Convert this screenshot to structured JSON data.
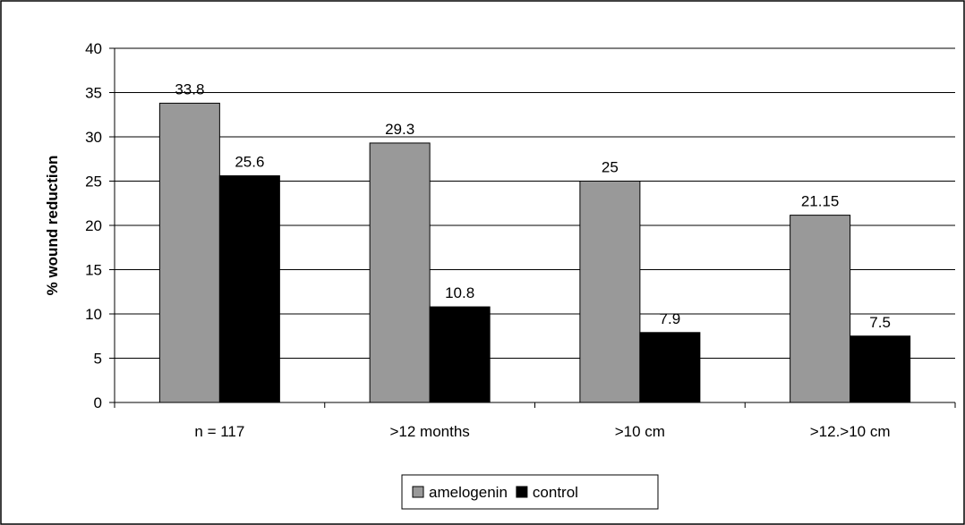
{
  "chart_data": {
    "type": "bar",
    "title": "",
    "xlabel": "",
    "ylabel": "% wound reduction",
    "ylim": [
      0,
      40
    ],
    "yticks": [
      0,
      5,
      10,
      15,
      20,
      25,
      30,
      35,
      40
    ],
    "grid": true,
    "legend_position": "bottom",
    "categories": [
      "n = 117",
      ">12 months",
      ">10 cm",
      ">12.>10 cm"
    ],
    "series": [
      {
        "name": "amelogenin",
        "values": [
          33.8,
          29.3,
          25,
          21.15
        ],
        "labels": [
          "33.8",
          "29.3",
          "25",
          "21.15"
        ],
        "color": "#999999"
      },
      {
        "name": "control",
        "values": [
          25.6,
          10.8,
          7.9,
          7.5
        ],
        "labels": [
          "25.6",
          "10.8",
          "7.9",
          "7.5"
        ],
        "color": "#000000"
      }
    ]
  }
}
